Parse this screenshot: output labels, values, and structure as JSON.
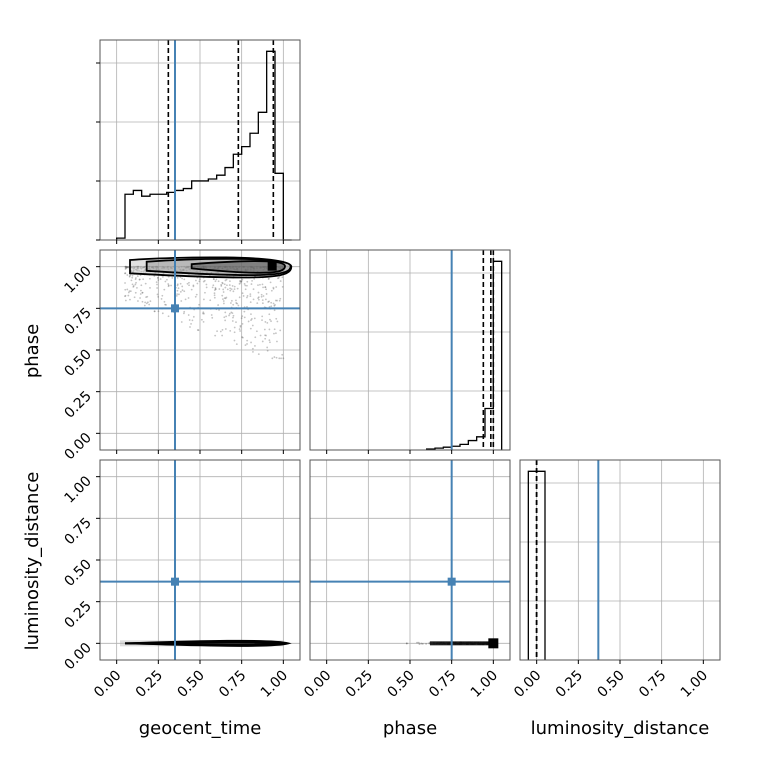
{
  "chart_data": {
    "type": "corner",
    "parameters": [
      "geocent_time",
      "phase",
      "luminosity_distance"
    ],
    "axis_labels": {
      "x": [
        "geocent_time",
        "phase",
        "luminosity_distance"
      ],
      "y": [
        "phase",
        "luminosity_distance"
      ]
    },
    "tick_values": [
      0.0,
      0.25,
      0.5,
      0.75,
      1.0
    ],
    "tick_labels": [
      "0.00",
      "0.25",
      "0.50",
      "0.75",
      "1.00"
    ],
    "ranges": {
      "geocent_time": [
        -0.1,
        1.1
      ],
      "phase": [
        -0.1,
        1.1
      ],
      "luminosity_distance": [
        -0.1,
        1.1
      ]
    },
    "grid": true,
    "truths": {
      "geocent_time": 0.35,
      "phase": 0.75,
      "luminosity_distance": 0.37
    },
    "quantiles": {
      "geocent_time": [
        0.31,
        0.73,
        0.94
      ],
      "phase": [
        0.94,
        0.985,
        1.0
      ],
      "luminosity_distance": [
        0.0,
        0.0,
        0.0
      ]
    },
    "histograms": {
      "geocent_time": {
        "bin_edges": [
          0.0,
          0.05,
          0.1,
          0.15,
          0.2,
          0.25,
          0.3,
          0.35,
          0.4,
          0.45,
          0.5,
          0.55,
          0.6,
          0.65,
          0.7,
          0.75,
          0.8,
          0.85,
          0.9,
          0.95,
          1.0,
          1.05
        ],
        "counts": [
          0.01,
          0.24,
          0.26,
          0.23,
          0.24,
          0.24,
          0.25,
          0.26,
          0.27,
          0.31,
          0.31,
          0.32,
          0.34,
          0.38,
          0.45,
          0.49,
          0.56,
          0.67,
          0.99,
          0.35,
          0.0
        ]
      },
      "phase": {
        "bin_edges": [
          0.6,
          0.65,
          0.7,
          0.75,
          0.8,
          0.85,
          0.9,
          0.95,
          1.0,
          1.05
        ],
        "counts": [
          0.005,
          0.01,
          0.015,
          0.02,
          0.03,
          0.05,
          0.07,
          0.22,
          1.0
        ]
      },
      "luminosity_distance": {
        "bin_edges": [
          -0.05,
          0.0,
          0.05
        ],
        "counts": [
          1.0,
          1.0
        ]
      }
    },
    "density_2d": {
      "phase_vs_geocent_time": {
        "peak": [
          0.95,
          1.0
        ],
        "scatter_extent": {
          "x": [
            0.05,
            1.0
          ],
          "y": [
            0.45,
            1.0
          ]
        }
      },
      "luminosity_distance_vs_geocent_time": {
        "peak": [
          0.95,
          0.0
        ],
        "x_extent": [
          0.05,
          1.0
        ]
      },
      "luminosity_distance_vs_phase": {
        "peak": [
          1.0,
          0.0
        ],
        "x_extent": [
          0.45,
          1.0
        ]
      }
    },
    "colors": {
      "truth": "#4682b4",
      "hist": "#000000",
      "grid": "#b0b0b0",
      "scatter": "#555555",
      "fill": "#bdbdbd"
    }
  }
}
